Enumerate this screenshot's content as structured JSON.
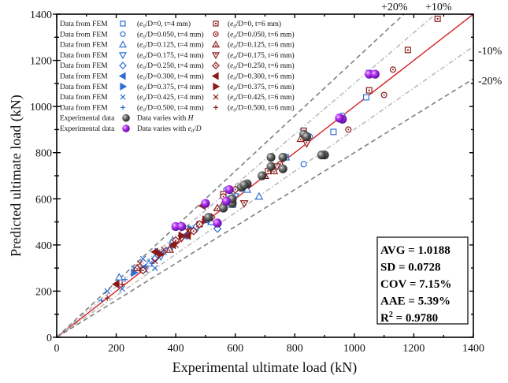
{
  "chart_data": {
    "type": "scatter",
    "title": "",
    "xlabel": "Experimental ultimate load (kN)",
    "ylabel": "Predicted ultimate load (kN)",
    "xlim": [
      0,
      1400
    ],
    "ylim": [
      0,
      1400
    ],
    "x_ticks": [
      "0",
      "200",
      "400",
      "600",
      "800",
      "1000",
      "1200",
      "1400"
    ],
    "y_ticks": [
      "0",
      "200",
      "400",
      "600",
      "800",
      "1000",
      "1200",
      "1400"
    ],
    "grid": false,
    "legend_position": "top-left",
    "reference_lines": [
      {
        "name": "1:1 line",
        "slope": 1.0,
        "color": "#d42020",
        "style": "solid"
      },
      {
        "name": "+10%",
        "slope": 1.1,
        "color": "#bbbbbb",
        "style": "dash-dot"
      },
      {
        "name": "-10%",
        "slope": 0.9,
        "color": "#bbbbbb",
        "style": "dash-dot"
      },
      {
        "name": "+20%",
        "slope": 1.2,
        "color": "#808080",
        "style": "dashed"
      },
      {
        "name": "-20%",
        "slope": 0.8,
        "color": "#808080",
        "style": "dashed"
      }
    ],
    "band_labels": {
      "plus20": "+20%",
      "plus10": "+10%",
      "minus10": "-10%",
      "minus20": "-20%"
    },
    "colors": {
      "fem_t4": "#2f6fd6",
      "fem_t6": "#8b1a1a",
      "exp_H": "#555555",
      "exp_e0D": "#a020e0"
    },
    "legend": [
      {
        "label": "Data from FEM",
        "marker": "square",
        "group": "t4",
        "desc_pre": "(e",
        "desc_sub": "0",
        "desc_post": "/D=0, t=4 mm)"
      },
      {
        "label": "Data from FEM",
        "marker": "circle",
        "group": "t4",
        "desc_pre": "(e",
        "desc_sub": "0",
        "desc_post": "/D=0.050, t=4 mm)"
      },
      {
        "label": "Data from FEM",
        "marker": "triangle-up",
        "group": "t4",
        "desc_pre": "(e",
        "desc_sub": "0",
        "desc_post": "/D=0.125, t=4 mm)"
      },
      {
        "label": "Data from FEM",
        "marker": "triangle-down",
        "group": "t4",
        "desc_pre": "(e",
        "desc_sub": "0",
        "desc_post": "/D=0.175, t=4 mm)"
      },
      {
        "label": "Data from FEM",
        "marker": "diamond",
        "group": "t4",
        "desc_pre": "(e",
        "desc_sub": "0",
        "desc_post": "/D=0.250, t=4 mm)"
      },
      {
        "label": "Data from FEM",
        "marker": "triangle-left",
        "group": "t4",
        "desc_pre": "(e",
        "desc_sub": "0",
        "desc_post": "/D=0.300, t=4 mm)"
      },
      {
        "label": "Data from FEM",
        "marker": "triangle-right",
        "group": "t4",
        "desc_pre": "(e",
        "desc_sub": "0",
        "desc_post": "/D=0.375, t=4 mm)"
      },
      {
        "label": "Data from FEM",
        "marker": "cross",
        "group": "t4",
        "desc_pre": "(e",
        "desc_sub": "0",
        "desc_post": "/D=0.425, t=4 mm)"
      },
      {
        "label": "Data from FEM",
        "marker": "plus",
        "group": "t4",
        "desc_pre": "(e",
        "desc_sub": "0",
        "desc_post": "/D=0.500, t=4 mm)"
      }
    ],
    "legend_t6": [
      {
        "marker": "square",
        "desc_pre": "(e",
        "desc_sub": "0",
        "desc_post": "/D=0, t=6 mm)"
      },
      {
        "marker": "circle",
        "desc_pre": "(e",
        "desc_sub": "0",
        "desc_post": "/D=0.050, t=6 mm)"
      },
      {
        "marker": "triangle-up",
        "desc_pre": "(e",
        "desc_sub": "0",
        "desc_post": "/D=0.125, t=6 mm)"
      },
      {
        "marker": "triangle-down",
        "desc_pre": "(e",
        "desc_sub": "0",
        "desc_post": "/D=0.175, t=6 mm)"
      },
      {
        "marker": "diamond",
        "desc_pre": "(e",
        "desc_sub": "0",
        "desc_post": "/D=0.250, t=6 mm)"
      },
      {
        "marker": "triangle-left",
        "desc_pre": "(e",
        "desc_sub": "0",
        "desc_post": "/D=0.300, t=6 mm)"
      },
      {
        "marker": "triangle-right",
        "desc_pre": "(e",
        "desc_sub": "0",
        "desc_post": "/D=0.375, t=6 mm)"
      },
      {
        "marker": "cross",
        "desc_pre": "(e",
        "desc_sub": "0",
        "desc_post": "/D=0.425, t=6 mm)"
      },
      {
        "marker": "plus",
        "desc_pre": "(e",
        "desc_sub": "0",
        "desc_post": "/D=0.500, t=6 mm)"
      }
    ],
    "legend_exp": [
      {
        "label": "Experimental data",
        "marker": "sphere-gray",
        "desc": "Data varies with ",
        "desc_italic": "H"
      },
      {
        "label": "Experimental data",
        "marker": "sphere-purple",
        "desc": "Data varies with e",
        "desc_sub": "0",
        "desc_post": "/D"
      }
    ],
    "series": [
      {
        "name": "FEM e0/D=0, t=4 mm",
        "marker": "square",
        "color": "#2f6fd6",
        "filled": false,
        "points": [
          [
            1040,
            1040
          ],
          [
            930,
            890
          ],
          [
            770,
            780
          ],
          [
            1050,
            1145
          ]
        ]
      },
      {
        "name": "FEM e0/D=0.050, t=4 mm",
        "marker": "circle",
        "color": "#2f6fd6",
        "filled": false,
        "points": [
          [
            850,
            870
          ],
          [
            830,
            750
          ],
          [
            720,
            720
          ],
          [
            960,
            960
          ],
          [
            570,
            640
          ]
        ]
      },
      {
        "name": "FEM e0/D=0.125, t=4 mm",
        "marker": "triangle-up",
        "color": "#2f6fd6",
        "filled": false,
        "points": [
          [
            770,
            780
          ],
          [
            680,
            610
          ],
          [
            390,
            420
          ],
          [
            520,
            500
          ],
          [
            210,
            260
          ],
          [
            310,
            320
          ],
          [
            590,
            575
          ],
          [
            640,
            640
          ]
        ]
      },
      {
        "name": "FEM e0/D=0.175, t=4 mm",
        "marker": "triangle-down",
        "color": "#2f6fd6",
        "filled": false,
        "points": [
          [
            560,
            560
          ],
          [
            470,
            470
          ],
          [
            350,
            350
          ],
          [
            600,
            610
          ]
        ]
      },
      {
        "name": "FEM e0/D=0.250, t=4 mm",
        "marker": "diamond",
        "color": "#2f6fd6",
        "filled": false,
        "points": [
          [
            540,
            470
          ],
          [
            580,
            600
          ],
          [
            470,
            480
          ],
          [
            330,
            340
          ]
        ]
      },
      {
        "name": "FEM e0/D=0.300, t=4 mm",
        "marker": "triangle-left",
        "color": "#2f6fd6",
        "filled": true,
        "points": [
          [
            430,
            440
          ],
          [
            380,
            385
          ],
          [
            290,
            300
          ],
          [
            500,
            510
          ]
        ]
      },
      {
        "name": "FEM e0/D=0.375, t=4 mm",
        "marker": "triangle-right",
        "color": "#2f6fd6",
        "filled": true,
        "points": [
          [
            340,
            370
          ],
          [
            260,
            280
          ],
          [
            450,
            470
          ],
          [
            510,
            510
          ]
        ]
      },
      {
        "name": "FEM e0/D=0.425, t=4 mm",
        "marker": "cross",
        "color": "#2f6fd6",
        "filled": false,
        "points": [
          [
            170,
            200
          ],
          [
            220,
            210
          ],
          [
            260,
            300
          ],
          [
            300,
            290
          ],
          [
            360,
            370
          ],
          [
            290,
            340
          ],
          [
            330,
            300
          ]
        ]
      },
      {
        "name": "FEM e0/D=0.500, t=4 mm",
        "marker": "plus",
        "color": "#2f6fd6",
        "filled": false,
        "points": [
          [
            150,
            160
          ],
          [
            230,
            250
          ],
          [
            320,
            320
          ]
        ]
      },
      {
        "name": "FEM e0/D=0, t=6 mm",
        "marker": "square",
        "color": "#8b1a1a",
        "filled": false,
        "points": [
          [
            1280,
            1380
          ],
          [
            1180,
            1245
          ],
          [
            1050,
            1070
          ],
          [
            830,
            895
          ],
          [
            710,
            720
          ],
          [
            560,
            620
          ],
          [
            480,
            490
          ]
        ]
      },
      {
        "name": "FEM e0/D=0.050, t=6 mm",
        "marker": "circle",
        "color": "#8b1a1a",
        "filled": false,
        "points": [
          [
            1130,
            1160
          ],
          [
            1100,
            1050
          ],
          [
            980,
            900
          ],
          [
            750,
            750
          ],
          [
            560,
            610
          ]
        ]
      },
      {
        "name": "FEM e0/D=0.125, t=6 mm",
        "marker": "triangle-up",
        "color": "#8b1a1a",
        "filled": false,
        "points": [
          [
            950,
            950
          ],
          [
            820,
            860
          ],
          [
            700,
            700
          ],
          [
            730,
            720
          ],
          [
            540,
            560
          ],
          [
            560,
            580
          ],
          [
            380,
            380
          ],
          [
            270,
            300
          ]
        ]
      },
      {
        "name": "FEM e0/D=0.175, t=6 mm",
        "marker": "triangle-down",
        "color": "#8b1a1a",
        "filled": false,
        "points": [
          [
            840,
            840
          ],
          [
            740,
            740
          ],
          [
            630,
            580
          ],
          [
            450,
            460
          ],
          [
            420,
            430
          ],
          [
            720,
            730
          ]
        ]
      },
      {
        "name": "FEM e0/D=0.250, t=6 mm",
        "marker": "diamond",
        "color": "#8b1a1a",
        "filled": false,
        "points": [
          [
            600,
            640
          ],
          [
            520,
            520
          ],
          [
            460,
            460
          ],
          [
            400,
            420
          ],
          [
            290,
            290
          ],
          [
            480,
            490
          ]
        ]
      },
      {
        "name": "FEM e0/D=0.300, t=6 mm",
        "marker": "triangle-left",
        "color": "#8b1a1a",
        "filled": true,
        "points": [
          [
            440,
            440
          ],
          [
            390,
            400
          ],
          [
            490,
            570
          ],
          [
            330,
            370
          ],
          [
            200,
            230
          ]
        ]
      },
      {
        "name": "FEM e0/D=0.375, t=6 mm",
        "marker": "triangle-right",
        "color": "#8b1a1a",
        "filled": true,
        "points": [
          [
            500,
            510
          ],
          [
            420,
            440
          ],
          [
            350,
            360
          ],
          [
            590,
            590
          ]
        ]
      },
      {
        "name": "FEM e0/D=0.425, t=6 mm",
        "marker": "cross",
        "color": "#8b1a1a",
        "filled": false,
        "points": [
          [
            330,
            330
          ],
          [
            400,
            400
          ],
          [
            440,
            460
          ],
          [
            360,
            380
          ],
          [
            280,
            320
          ]
        ]
      },
      {
        "name": "FEM e0/D=0.500, t=6 mm",
        "marker": "plus",
        "color": "#8b1a1a",
        "filled": false,
        "points": [
          [
            170,
            170
          ],
          [
            280,
            290
          ],
          [
            220,
            230
          ],
          [
            400,
            410
          ]
        ]
      },
      {
        "name": "Experimental (varies with H)",
        "marker": "sphere",
        "color": "#555555",
        "points": [
          [
            830,
            880
          ],
          [
            840,
            870
          ],
          [
            900,
            790
          ],
          [
            890,
            790
          ],
          [
            720,
            780
          ],
          [
            760,
            780
          ],
          [
            760,
            730
          ],
          [
            720,
            740
          ],
          [
            640,
            665
          ],
          [
            620,
            650
          ],
          [
            690,
            700
          ],
          [
            590,
            580
          ],
          [
            560,
            560
          ],
          [
            510,
            520
          ],
          [
            630,
            660
          ],
          [
            590,
            600
          ]
        ]
      },
      {
        "name": "Experimental (varies with e0/D)",
        "marker": "sphere",
        "color": "#a020e0",
        "points": [
          [
            1050,
            1140
          ],
          [
            1070,
            1140
          ],
          [
            960,
            945
          ],
          [
            950,
            950
          ],
          [
            500,
            580
          ],
          [
            570,
            590
          ],
          [
            400,
            480
          ],
          [
            420,
            480
          ],
          [
            540,
            495
          ],
          [
            580,
            640
          ]
        ]
      }
    ],
    "stats": [
      {
        "label": "AVG",
        "value": "1.0188"
      },
      {
        "label": "SD",
        "value": "0.0728"
      },
      {
        "label": "COV",
        "value": "7.15%"
      },
      {
        "label": "AAE",
        "value": "5.39%"
      },
      {
        "label": "R",
        "sup": "2",
        "value": "0.9780"
      }
    ]
  }
}
